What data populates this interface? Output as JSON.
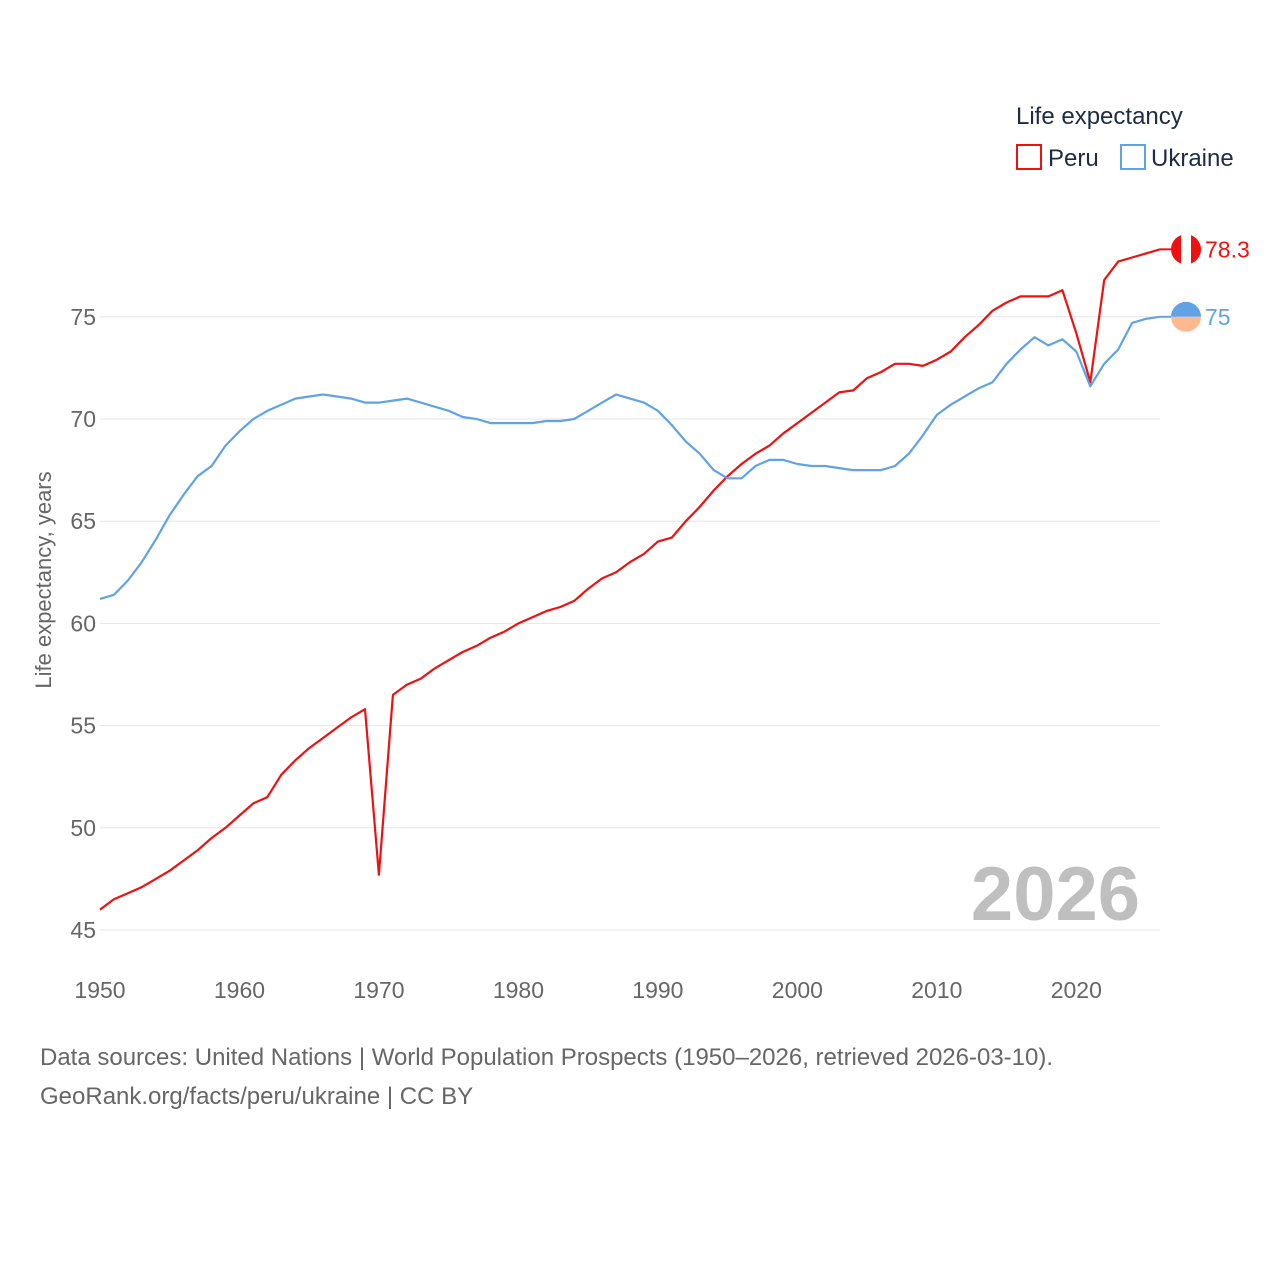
{
  "chart_data": {
    "type": "line",
    "legend_title": "Life expectancy",
    "ylabel": "Life expectancy, years",
    "xlabel": "",
    "xlim": [
      1950,
      2026
    ],
    "ylim": [
      45,
      80
    ],
    "x_ticks": [
      1950,
      1960,
      1970,
      1980,
      1990,
      2000,
      2010,
      2020
    ],
    "y_ticks": [
      45,
      50,
      55,
      60,
      65,
      70,
      75
    ],
    "year_label": "2026",
    "x": [
      1950,
      1951,
      1952,
      1953,
      1954,
      1955,
      1956,
      1957,
      1958,
      1959,
      1960,
      1961,
      1962,
      1963,
      1964,
      1965,
      1966,
      1967,
      1968,
      1969,
      1970,
      1971,
      1972,
      1973,
      1974,
      1975,
      1976,
      1977,
      1978,
      1979,
      1980,
      1981,
      1982,
      1983,
      1984,
      1985,
      1986,
      1987,
      1988,
      1989,
      1990,
      1991,
      1992,
      1993,
      1994,
      1995,
      1996,
      1997,
      1998,
      1999,
      2000,
      2001,
      2002,
      2003,
      2004,
      2005,
      2006,
      2007,
      2008,
      2009,
      2010,
      2011,
      2012,
      2013,
      2014,
      2015,
      2016,
      2017,
      2018,
      2019,
      2020,
      2021,
      2022,
      2023,
      2024,
      2025,
      2026
    ],
    "series": [
      {
        "name": "Peru",
        "color": "#ee1111",
        "end_label": "78.3",
        "values": [
          46.0,
          46.5,
          46.8,
          47.1,
          47.5,
          47.9,
          48.4,
          48.9,
          49.5,
          50.0,
          50.6,
          51.2,
          51.5,
          52.6,
          53.3,
          53.9,
          54.4,
          54.9,
          55.4,
          55.8,
          47.7,
          56.5,
          57.0,
          57.3,
          57.8,
          58.2,
          58.6,
          58.9,
          59.3,
          59.6,
          60.0,
          60.3,
          60.6,
          60.8,
          61.1,
          61.7,
          62.2,
          62.5,
          63.0,
          63.4,
          64.0,
          64.2,
          65.0,
          65.7,
          66.5,
          67.2,
          67.8,
          68.3,
          68.7,
          69.3,
          69.8,
          70.3,
          70.8,
          71.3,
          71.4,
          72.0,
          72.3,
          72.7,
          72.7,
          72.6,
          72.9,
          73.3,
          74.0,
          74.6,
          75.3,
          75.7,
          76.0,
          76.0,
          76.0,
          76.3,
          74.2,
          71.8,
          76.8,
          77.7,
          77.9,
          78.1,
          78.3
        ]
      },
      {
        "name": "Ukraine",
        "color": "#5fa3e6",
        "end_label": "75",
        "values": [
          61.2,
          61.4,
          62.1,
          63.0,
          64.1,
          65.3,
          66.3,
          67.2,
          67.7,
          68.7,
          69.4,
          70.0,
          70.4,
          70.7,
          71.0,
          71.1,
          71.2,
          71.1,
          71.0,
          70.8,
          70.8,
          70.9,
          71.0,
          70.8,
          70.6,
          70.4,
          70.1,
          70.0,
          69.8,
          69.8,
          69.8,
          69.8,
          69.9,
          69.9,
          70.0,
          70.4,
          70.8,
          71.2,
          71.0,
          70.8,
          70.4,
          69.7,
          68.9,
          68.3,
          67.5,
          67.1,
          67.1,
          67.7,
          68.0,
          68.0,
          67.8,
          67.7,
          67.7,
          67.6,
          67.5,
          67.5,
          67.5,
          67.7,
          68.3,
          69.2,
          70.2,
          70.7,
          71.1,
          71.5,
          71.8,
          72.7,
          73.4,
          74.0,
          73.6,
          73.9,
          73.3,
          71.6,
          72.7,
          73.4,
          74.7,
          74.9,
          75.0
        ]
      }
    ]
  },
  "footer": {
    "source": "Data sources: United Nations | World Population Prospects (1950–2026, retrieved 2026-03-10).",
    "credit": "GeoRank.org/facts/peru/ukraine | CC BY"
  },
  "colors": {
    "grid": "#e6e6e6",
    "tick_text": "#666666",
    "legend_text": "#1d2b45",
    "watermark": "#bfbfbf",
    "peru_flag_red": "#ee1111",
    "ukraine_flag_blue": "#5fa3e6",
    "ukraine_flag_yellow": "#fbb98f"
  },
  "icons": {
    "peru": "peru-flag-icon",
    "ukraine": "ukraine-flag-icon"
  }
}
